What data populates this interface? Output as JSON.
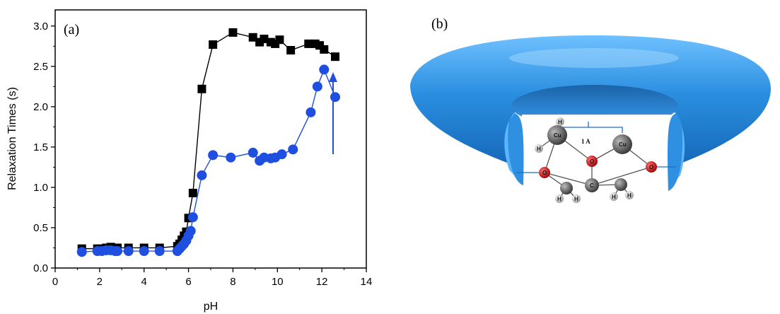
{
  "chart_data": {
    "type": "line",
    "panel_label": "(a)",
    "xlabel": "pH",
    "ylabel": "Relaxation Times (s)",
    "xlim": [
      0,
      14
    ],
    "ylim": [
      0,
      3.2
    ],
    "xticks": [
      0,
      2,
      4,
      6,
      8,
      10,
      12,
      14
    ],
    "yticks": [
      0.0,
      0.5,
      1.0,
      1.5,
      2.0,
      2.5,
      3.0
    ],
    "ytick_labels": [
      "0.0",
      "0.5",
      "1.0",
      "1.5",
      "2.0",
      "2.5",
      "3.0"
    ],
    "grid": false,
    "annotation": "vertical arrow pointing up at pH ≈ 12.2",
    "series": [
      {
        "marker": "square",
        "color": "#000000",
        "x": [
          1.2,
          1.9,
          2.1,
          2.3,
          2.5,
          2.7,
          2.8,
          3.3,
          4.0,
          4.7,
          5.5,
          5.6,
          5.7,
          5.8,
          5.9,
          6.0,
          6.2,
          6.6,
          7.1,
          8.0,
          8.9,
          9.2,
          9.4,
          9.7,
          9.9,
          10.1,
          10.6,
          11.4,
          11.7,
          11.9,
          12.1,
          12.6
        ],
        "y": [
          0.24,
          0.24,
          0.24,
          0.25,
          0.26,
          0.25,
          0.25,
          0.25,
          0.25,
          0.25,
          0.27,
          0.3,
          0.35,
          0.4,
          0.45,
          0.62,
          0.93,
          2.22,
          2.77,
          2.92,
          2.86,
          2.8,
          2.84,
          2.8,
          2.78,
          2.83,
          2.7,
          2.78,
          2.78,
          2.76,
          2.71,
          2.62
        ]
      },
      {
        "marker": "circle",
        "color": "#1f4fe0",
        "x": [
          1.2,
          1.9,
          2.1,
          2.3,
          2.5,
          2.7,
          2.8,
          3.3,
          4.0,
          4.7,
          5.5,
          5.6,
          5.7,
          5.8,
          5.9,
          6.0,
          6.1,
          6.2,
          6.6,
          7.1,
          7.9,
          8.9,
          9.2,
          9.4,
          9.7,
          9.9,
          10.2,
          10.7,
          11.5,
          11.8,
          12.1,
          12.6
        ],
        "y": [
          0.2,
          0.21,
          0.21,
          0.22,
          0.22,
          0.21,
          0.21,
          0.21,
          0.21,
          0.21,
          0.21,
          0.24,
          0.27,
          0.3,
          0.34,
          0.4,
          0.46,
          0.63,
          1.15,
          1.4,
          1.37,
          1.43,
          1.33,
          1.37,
          1.36,
          1.37,
          1.41,
          1.47,
          1.93,
          2.25,
          2.46,
          2.12
        ]
      }
    ]
  },
  "figure_b": {
    "panel_label": "(b)",
    "distance_label": "1 A",
    "atom_labels": {
      "cu": "Cu",
      "o": "O",
      "c": "C",
      "h": "H"
    },
    "colors": {
      "torus": "#2a8ee0",
      "torus_dark": "#1668b8",
      "oxygen": "#d11818",
      "copper": "#555555",
      "hydrogen": "#dddddd"
    }
  }
}
